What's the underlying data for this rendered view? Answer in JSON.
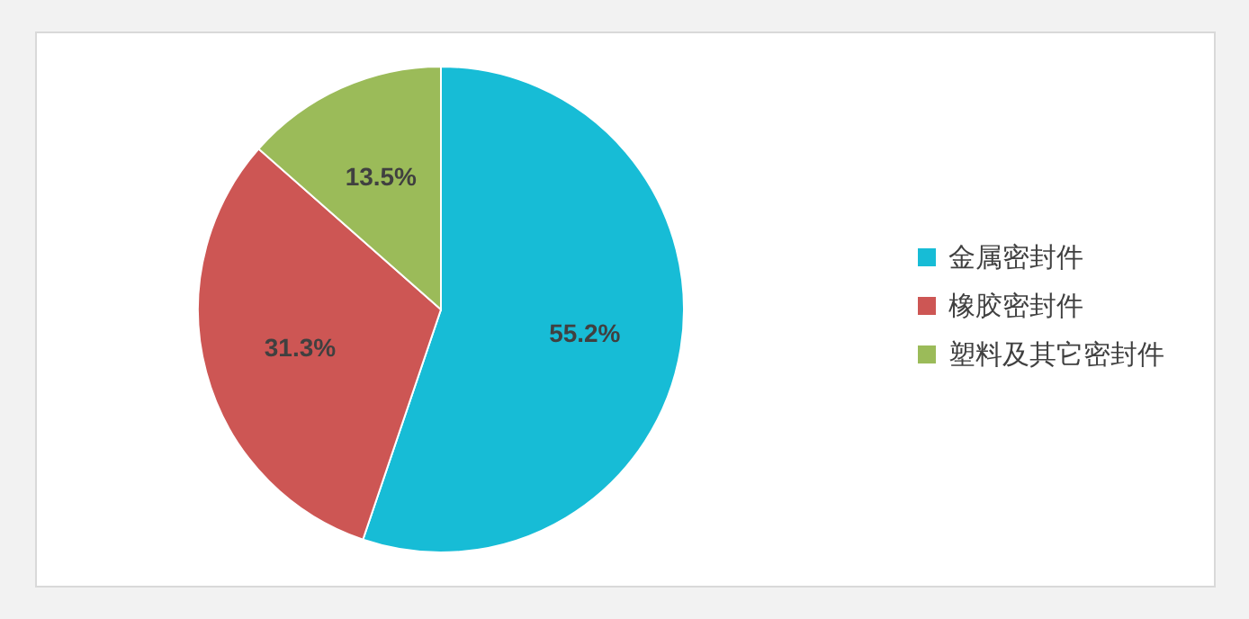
{
  "chart_data": {
    "type": "pie",
    "categories": [
      "金属密封件",
      "橡胶密封件",
      "塑料及其它密封件"
    ],
    "values": [
      55.2,
      31.3,
      13.5
    ],
    "colors": [
      "#17bcd6",
      "#cd5654",
      "#9bbb59"
    ],
    "value_labels": [
      "55.2%",
      "31.3%",
      "13.5%"
    ],
    "legend": "right"
  }
}
